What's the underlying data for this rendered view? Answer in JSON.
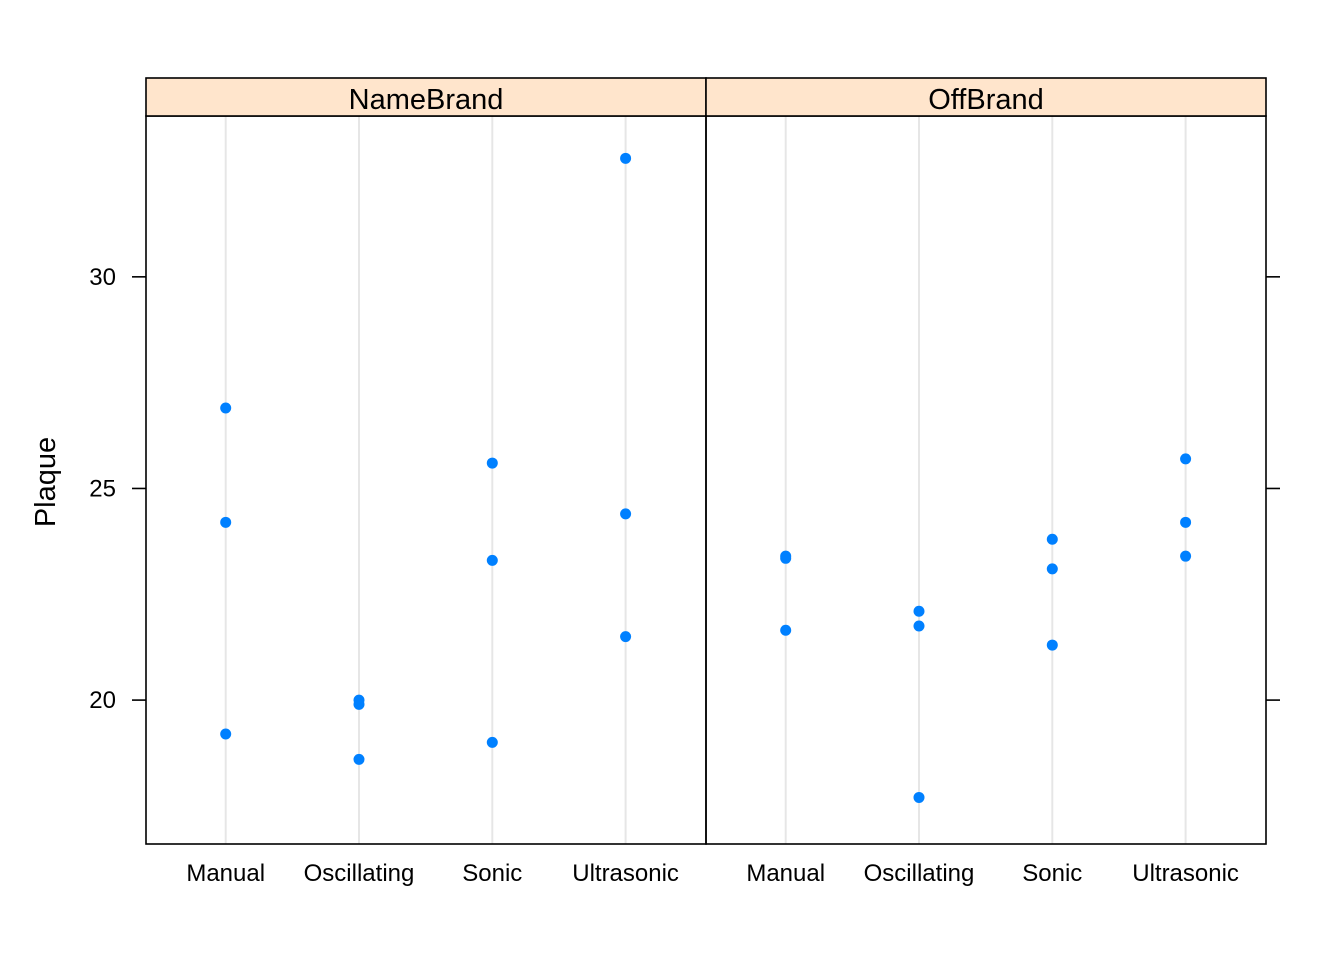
{
  "chart_data": {
    "type": "scatter",
    "ylabel": "Plaque",
    "ylim": [
      16.6,
      33.8
    ],
    "yticks": [
      20,
      25,
      30
    ],
    "categories": [
      "Manual",
      "Oscillating",
      "Sonic",
      "Ultrasonic"
    ],
    "point_color": "#0080FF",
    "strip_color": "#FFE5CC",
    "grid": "vertical",
    "panels": [
      {
        "name": "NameBrand",
        "points": {
          "Manual": [
            26.9,
            24.2,
            19.2
          ],
          "Oscillating": [
            20.0,
            19.9,
            18.6
          ],
          "Sonic": [
            25.6,
            23.3,
            19.0
          ],
          "Ultrasonic": [
            32.8,
            24.4,
            21.5
          ]
        }
      },
      {
        "name": "OffBrand",
        "points": {
          "Manual": [
            23.4,
            23.35,
            21.65
          ],
          "Oscillating": [
            22.1,
            21.75,
            17.7
          ],
          "Sonic": [
            23.8,
            23.1,
            21.3
          ],
          "Ultrasonic": [
            25.7,
            24.2,
            23.4
          ]
        }
      }
    ]
  }
}
